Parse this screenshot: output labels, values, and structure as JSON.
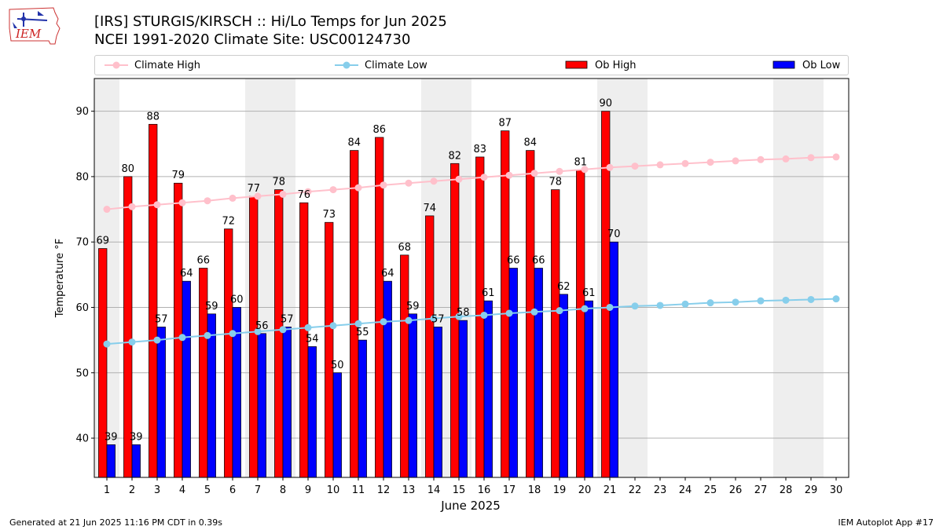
{
  "header": {
    "title_line1": "[IRS] STURGIS/KIRSCH :: Hi/Lo Temps for Jun 2025",
    "title_line2": "NCEI 1991-2020 Climate Site: USC00124730",
    "logo_text": "IEM"
  },
  "legend": {
    "climate_high": "Climate High",
    "climate_low": "Climate Low",
    "ob_high": "Ob High",
    "ob_low": "Ob Low"
  },
  "footer": {
    "left": "Generated at 21 Jun 2025 11:16 PM CDT in 0.39s",
    "right": "IEM Autoplot App #17"
  },
  "colors": {
    "ob_high": "#ff0000",
    "ob_low": "#0000ff",
    "climate_high": "#ffc0cb",
    "climate_low": "#87ceeb",
    "weekend_shade": "#eeeeee",
    "grid": "#b0b0b0"
  },
  "chart_data": {
    "type": "bar",
    "xlabel": "June 2025",
    "ylabel": "Temperature °F",
    "ylim": [
      34,
      95
    ],
    "yticks": [
      40,
      50,
      60,
      70,
      80,
      90
    ],
    "grid": "horizontal",
    "legend_position": "top",
    "days": [
      1,
      2,
      3,
      4,
      5,
      6,
      7,
      8,
      9,
      10,
      11,
      12,
      13,
      14,
      15,
      16,
      17,
      18,
      19,
      20,
      21,
      22,
      23,
      24,
      25,
      26,
      27,
      28,
      29,
      30
    ],
    "weekend_days": [
      1,
      7,
      8,
      14,
      15,
      21,
      22,
      28,
      29
    ],
    "series": [
      {
        "name": "Ob High",
        "kind": "bar",
        "values": [
          69,
          80,
          88,
          79,
          66,
          72,
          77,
          78,
          76,
          73,
          84,
          86,
          68,
          74,
          82,
          83,
          87,
          84,
          78,
          81,
          90
        ]
      },
      {
        "name": "Ob Low",
        "kind": "bar",
        "values": [
          39,
          39,
          57,
          64,
          59,
          60,
          56,
          57,
          54,
          50,
          55,
          64,
          59,
          57,
          58,
          61,
          66,
          66,
          62,
          61,
          70
        ]
      },
      {
        "name": "Climate High",
        "kind": "line",
        "values": [
          75.0,
          75.4,
          75.7,
          76.0,
          76.3,
          76.7,
          77.0,
          77.3,
          77.7,
          78.0,
          78.3,
          78.7,
          79.0,
          79.3,
          79.6,
          79.9,
          80.2,
          80.5,
          80.8,
          81.1,
          81.4,
          81.6,
          81.8,
          82.0,
          82.2,
          82.4,
          82.6,
          82.7,
          82.9,
          83.0
        ]
      },
      {
        "name": "Climate Low",
        "kind": "line",
        "values": [
          54.4,
          54.7,
          55.0,
          55.4,
          55.7,
          56.0,
          56.3,
          56.6,
          56.9,
          57.2,
          57.5,
          57.8,
          58.0,
          58.3,
          58.6,
          58.8,
          59.1,
          59.3,
          59.5,
          59.8,
          60.0,
          60.2,
          60.3,
          60.5,
          60.7,
          60.8,
          61.0,
          61.1,
          61.2,
          61.3
        ]
      }
    ]
  }
}
